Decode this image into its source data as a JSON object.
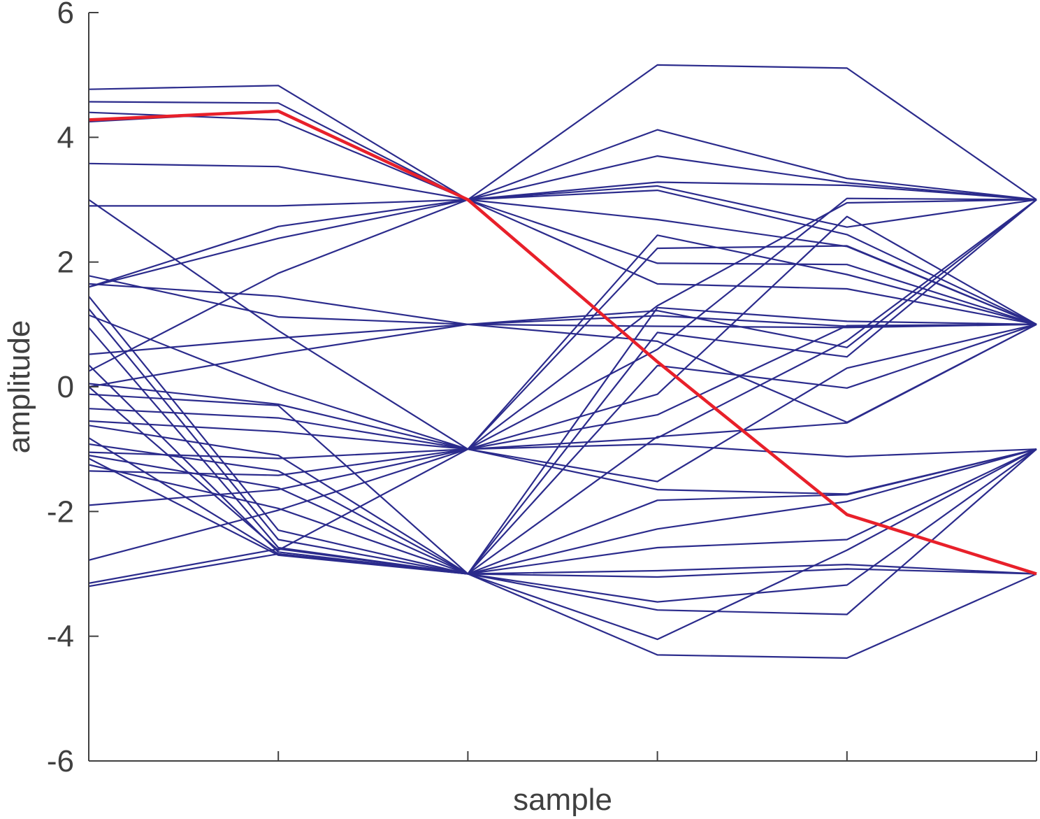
{
  "chart_data": {
    "type": "line",
    "xlabel": "sample",
    "ylabel": "amplitude",
    "xlim": [
      1,
      6
    ],
    "ylim": [
      -6,
      6
    ],
    "xticks": [
      1,
      2,
      3,
      4,
      5,
      6
    ],
    "yticks": [
      -6,
      -4,
      -2,
      0,
      2,
      4,
      6
    ],
    "ytick_labels": [
      "-6",
      "-4",
      "-2",
      "0",
      "2",
      "4",
      "6"
    ],
    "grid": false,
    "legend": "none",
    "colors": {
      "paths": "#2b2b8c",
      "highlight": "#e8202a",
      "axis": "#404040"
    },
    "x": [
      1,
      2,
      3,
      4,
      5,
      6
    ],
    "series": [
      {
        "values": [
          4.77,
          4.83,
          3,
          5.16,
          5.11,
          3
        ]
      },
      {
        "values": [
          4.57,
          4.55,
          3,
          4.12,
          3.34,
          3
        ]
      },
      {
        "values": [
          4.4,
          4.28,
          3,
          3.7,
          3.27,
          3
        ]
      },
      {
        "values": [
          4.25,
          4.42,
          3,
          3.28,
          3.23,
          3
        ]
      },
      {
        "values": [
          3.58,
          3.53,
          3,
          3.22,
          2.56,
          3
        ]
      },
      {
        "values": [
          2.9,
          2.9,
          3,
          3.15,
          2.44,
          1
        ]
      },
      {
        "values": [
          1.6,
          2.57,
          3,
          2.68,
          2.25,
          1
        ]
      },
      {
        "values": [
          1.6,
          2.38,
          3,
          1.98,
          1.96,
          1
        ]
      },
      {
        "values": [
          0.25,
          1.82,
          3,
          1.65,
          1.57,
          1
        ]
      },
      {
        "values": [
          1.78,
          1.12,
          1,
          1.14,
          0.97,
          1
        ]
      },
      {
        "values": [
          1.65,
          1.45,
          1,
          0.97,
          0.95,
          1
        ]
      },
      {
        "values": [
          0.52,
          0.78,
          1,
          1.22,
          0.63,
          3
        ]
      },
      {
        "values": [
          0,
          0.53,
          1,
          0.73,
          -0.57,
          1
        ]
      },
      {
        "values": [
          3.0,
          0.9,
          -1,
          2.22,
          2.26,
          1
        ]
      },
      {
        "values": [
          1.15,
          -0.05,
          -1,
          2.43,
          1.8,
          1
        ]
      },
      {
        "values": [
          0.05,
          -0.28,
          -1,
          1.3,
          2.95,
          3
        ]
      },
      {
        "values": [
          -0.35,
          -0.5,
          -1,
          0.6,
          3.02,
          3
        ]
      },
      {
        "values": [
          -0.55,
          -0.72,
          -1,
          -0.12,
          2.73,
          1
        ]
      },
      {
        "values": [
          -1.05,
          -1.15,
          -1,
          -0.45,
          0.98,
          1
        ]
      },
      {
        "values": [
          -1.35,
          -1.42,
          -1,
          -0.82,
          0.74,
          3
        ]
      },
      {
        "values": [
          -1.9,
          -1.65,
          -1,
          -0.92,
          -1.12,
          -1
        ]
      },
      {
        "values": [
          -2.78,
          -1.98,
          -1,
          -1.52,
          0.3,
          1
        ]
      },
      {
        "values": [
          0.0,
          -2.62,
          -1,
          -1.65,
          -1.72,
          -1
        ]
      },
      {
        "values": [
          1.45,
          -2.3,
          -3,
          1.27,
          1.05,
          1
        ]
      },
      {
        "values": [
          1.25,
          -2.45,
          -3,
          0.87,
          0.48,
          3
        ]
      },
      {
        "values": [
          0.95,
          -2.58,
          -3,
          0.34,
          -0.02,
          1
        ]
      },
      {
        "values": [
          0.35,
          -2.65,
          -3,
          -0.8,
          -0.58,
          1
        ]
      },
      {
        "values": [
          -0.82,
          -2.68,
          -3,
          -1.82,
          -1.73,
          -1
        ]
      },
      {
        "values": [
          -1.15,
          -2.7,
          -3,
          -2.28,
          -1.84,
          -1
        ]
      },
      {
        "values": [
          -3.15,
          -2.6,
          -3,
          -2.58,
          -2.45,
          -1
        ]
      },
      {
        "values": [
          -3.2,
          -2.68,
          -3,
          -2.95,
          -2.85,
          -3
        ]
      },
      {
        "values": [
          -0.62,
          -1.1,
          -3,
          -3.05,
          -2.92,
          -3
        ]
      },
      {
        "values": [
          -0.92,
          -1.35,
          -3,
          -3.45,
          -3.18,
          -1
        ]
      },
      {
        "values": [
          -1.1,
          -1.62,
          -3,
          -3.58,
          -3.65,
          -1
        ]
      },
      {
        "values": [
          -1.25,
          -1.95,
          -3,
          -4.05,
          -2.62,
          -1
        ]
      },
      {
        "values": [
          -0.12,
          -0.3,
          -3,
          -4.3,
          -4.35,
          -3
        ]
      }
    ],
    "highlight": {
      "values": [
        4.28,
        4.42,
        3,
        0.4,
        -2.05,
        -3
      ]
    }
  }
}
